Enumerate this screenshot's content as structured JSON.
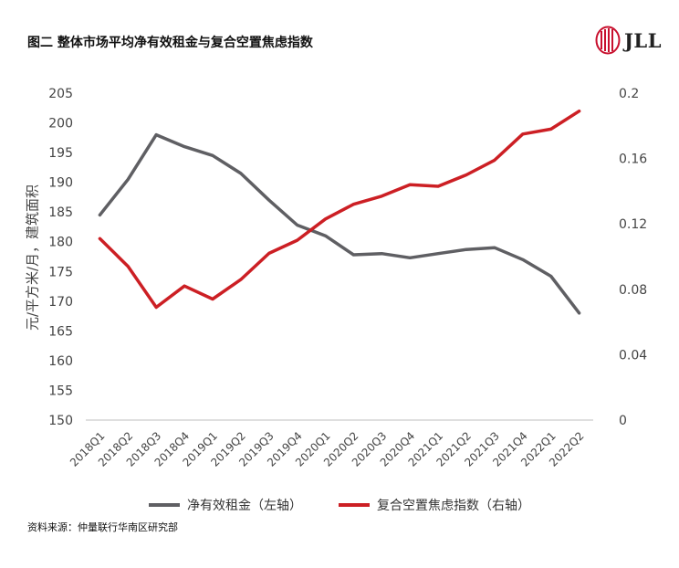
{
  "title": "图二  整体市场平均净有效租金与复合空置焦虑指数",
  "logo": {
    "text": "JLL"
  },
  "source": "资料来源：仲量联行华南区研究部",
  "chart_data": {
    "type": "line",
    "categories": [
      "2018Q1",
      "2018Q2",
      "2018Q3",
      "2018Q4",
      "2019Q1",
      "2019Q2",
      "2019Q3",
      "2019Q4",
      "2020Q1",
      "2020Q2",
      "2020Q3",
      "2020Q4",
      "2021Q1",
      "2021Q2",
      "2021Q3",
      "2021Q4",
      "2022Q1",
      "2022Q2"
    ],
    "ylabel": "元/平方米/月，建筑面积",
    "ylim_left": [
      150,
      205
    ],
    "yticks_left": [
      "205",
      "200",
      "195",
      "190",
      "185",
      "180",
      "175",
      "170",
      "165",
      "160",
      "155",
      "150"
    ],
    "ylim_right": [
      0,
      0.2
    ],
    "yticks_right": [
      "0.2",
      "0.16",
      "0.12",
      "0.08",
      "0.04",
      "0"
    ],
    "grid": false,
    "legend_position": "bottom",
    "series": [
      {
        "name": "净有效租金（左轴）",
        "axis": "left",
        "color": "#5f5f63",
        "values": [
          184.5,
          190.5,
          198.0,
          196.0,
          194.5,
          191.5,
          187.0,
          182.8,
          181.0,
          177.8,
          178.0,
          177.3,
          178.0,
          178.7,
          179.0,
          177.0,
          174.2,
          168.0
        ]
      },
      {
        "name": "复合空置焦虑指数（右轴）",
        "axis": "right",
        "color": "#cc1f24",
        "values": [
          0.111,
          0.094,
          0.069,
          0.082,
          0.074,
          0.086,
          0.102,
          0.11,
          0.123,
          0.132,
          0.137,
          0.144,
          0.143,
          0.15,
          0.159,
          0.175,
          0.178,
          0.189
        ]
      }
    ]
  }
}
